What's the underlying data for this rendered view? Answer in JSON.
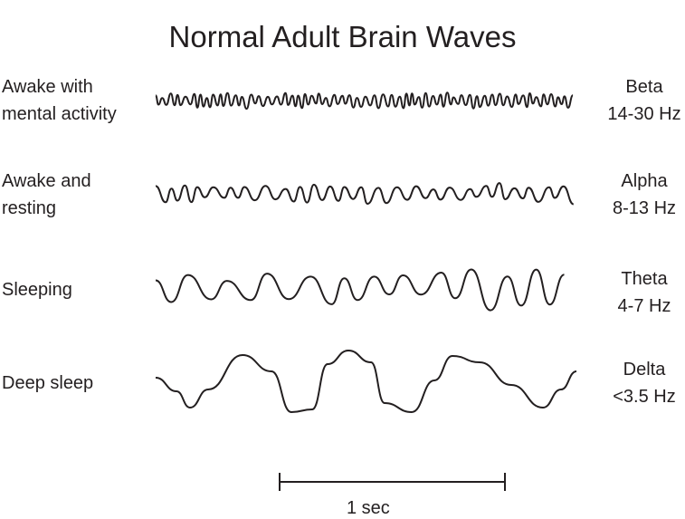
{
  "title": "Normal Adult Brain Waves",
  "rows": [
    {
      "state": [
        "Awake with",
        "mental activity"
      ],
      "band": "Beta",
      "range": "14-30 Hz"
    },
    {
      "state": [
        "Awake and",
        "resting"
      ],
      "band": "Alpha",
      "range": "8-13 Hz"
    },
    {
      "state": [
        "Sleeping"
      ],
      "band": "Theta",
      "range": "4-7 Hz"
    },
    {
      "state": [
        "Deep sleep"
      ],
      "band": "Delta",
      "range": "<3.5 Hz"
    }
  ],
  "scale_bar": {
    "label": "1 sec"
  },
  "colors": {
    "line": "#231f20"
  }
}
